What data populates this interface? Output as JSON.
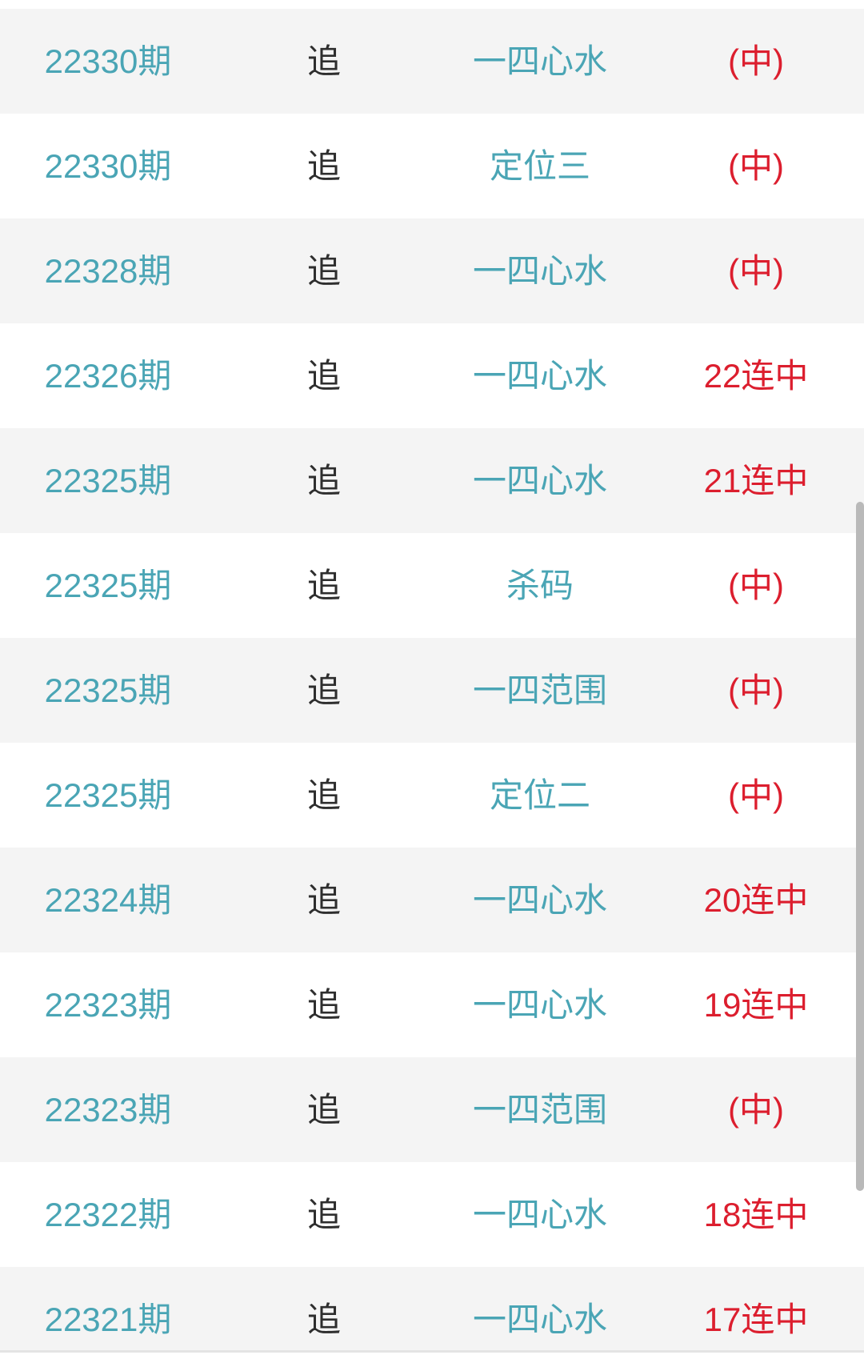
{
  "colors": {
    "teal_text": "#4AA5B5",
    "red_text": "#DC1E2E",
    "dark_text": "#2E2E2E",
    "row_alt_background": "#F4F4F4",
    "page_background": "#FFFFFF",
    "divider": "#E4E4E4",
    "scrollbar": "#B9B9B9"
  },
  "table": {
    "rows": [
      {
        "period": "22330期",
        "action": "追",
        "play": "一四心水",
        "result": "(中)"
      },
      {
        "period": "22330期",
        "action": "追",
        "play": "定位三",
        "result": "(中)"
      },
      {
        "period": "22328期",
        "action": "追",
        "play": "一四心水",
        "result": "(中)"
      },
      {
        "period": "22326期",
        "action": "追",
        "play": "一四心水",
        "result": "22连中"
      },
      {
        "period": "22325期",
        "action": "追",
        "play": "一四心水",
        "result": "21连中"
      },
      {
        "period": "22325期",
        "action": "追",
        "play": "杀码",
        "result": "(中)"
      },
      {
        "period": "22325期",
        "action": "追",
        "play": "一四范围",
        "result": "(中)"
      },
      {
        "period": "22325期",
        "action": "追",
        "play": "定位二",
        "result": "(中)"
      },
      {
        "period": "22324期",
        "action": "追",
        "play": "一四心水",
        "result": "20连中"
      },
      {
        "period": "22323期",
        "action": "追",
        "play": "一四心水",
        "result": "19连中"
      },
      {
        "period": "22323期",
        "action": "追",
        "play": "一四范围",
        "result": "(中)"
      },
      {
        "period": "22322期",
        "action": "追",
        "play": "一四心水",
        "result": "18连中"
      },
      {
        "period": "22321期",
        "action": "追",
        "play": "一四心水",
        "result": "17连中"
      }
    ]
  }
}
